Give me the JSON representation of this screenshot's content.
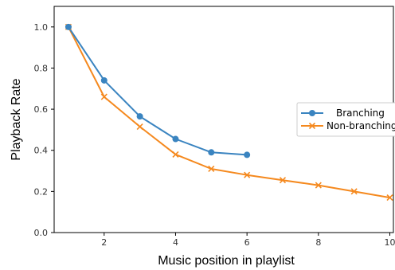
{
  "chart_data": {
    "type": "line",
    "xlabel": "Music position in playlist",
    "ylabel": "Playback Rate",
    "xlim": [
      0.6,
      10.1
    ],
    "ylim": [
      0.0,
      1.1
    ],
    "xticks": [
      2,
      4,
      6,
      8,
      10
    ],
    "yticks": [
      0.0,
      0.2,
      0.4,
      0.6,
      0.8,
      1.0
    ],
    "xtick_labels": [
      "2",
      "4",
      "6",
      "8",
      "10"
    ],
    "ytick_labels": [
      "0.0",
      "0.2",
      "0.4",
      "0.6",
      "0.8",
      "1.0"
    ],
    "grid": false,
    "legend_position": "right",
    "series": [
      {
        "name": "Branching",
        "marker": "circle",
        "color": "#3a84c0",
        "x": [
          1,
          2,
          3,
          4,
          5,
          6
        ],
        "y": [
          1.0,
          0.74,
          0.565,
          0.455,
          0.39,
          0.378
        ]
      },
      {
        "name": "Non-branching",
        "marker": "x",
        "color": "#f5891e",
        "x": [
          1,
          2,
          3,
          4,
          5,
          6,
          7,
          8,
          9,
          10
        ],
        "y": [
          1.0,
          0.66,
          0.515,
          0.38,
          0.31,
          0.28,
          0.255,
          0.23,
          0.2,
          0.17
        ]
      }
    ]
  }
}
